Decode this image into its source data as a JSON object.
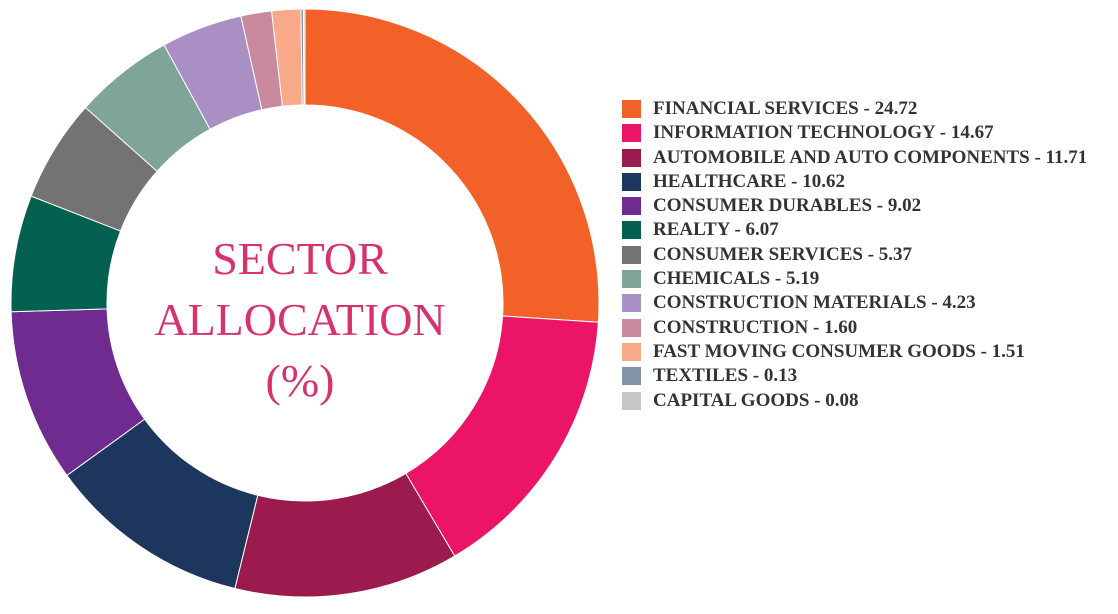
{
  "chart_data": {
    "type": "pie",
    "variant": "donut",
    "title_lines": [
      "SECTOR",
      "ALLOCATION",
      "(%)"
    ],
    "legend_position": "right",
    "slices": [
      {
        "label": "FINANCIAL SERVICES",
        "value": 24.72,
        "color": "#f26127",
        "legend_text": "FINANCIAL SERVICES - 24.72"
      },
      {
        "label": "INFORMATION TECHNOLOGY",
        "value": 14.67,
        "color": "#eb1466",
        "legend_text": "INFORMATION TECHNOLOGY - 14.67"
      },
      {
        "label": "AUTOMOBILE AND AUTO COMPONENTS",
        "value": 11.71,
        "color": "#9b1b4f",
        "legend_text": "AUTOMOBILE AND AUTO COMPONENTS - 11.71"
      },
      {
        "label": "HEALTHCARE",
        "value": 10.62,
        "color": "#1c365e",
        "legend_text": "HEALTHCARE - 10.62"
      },
      {
        "label": "CONSUMER DURABLES",
        "value": 9.02,
        "color": "#6f2b90",
        "legend_text": "CONSUMER DURABLES - 9.02"
      },
      {
        "label": "REALTY",
        "value": 6.07,
        "color": "#04604f",
        "legend_text": "REALTY - 6.07"
      },
      {
        "label": "CONSUMER SERVICES",
        "value": 5.37,
        "color": "#737373",
        "legend_text": "CONSUMER SERVICES - 5.37"
      },
      {
        "label": "CHEMICALS",
        "value": 5.19,
        "color": "#7fa59a",
        "legend_text": "CHEMICALS - 5.19"
      },
      {
        "label": "CONSTRUCTION MATERIALS",
        "value": 4.23,
        "color": "#a98fc4",
        "legend_text": "CONSTRUCTION MATERIALS - 4.23"
      },
      {
        "label": "CONSTRUCTION",
        "value": 1.6,
        "color": "#c98a9f",
        "legend_text": "CONSTRUCTION - 1.60"
      },
      {
        "label": "FAST MOVING CONSUMER GOODS",
        "value": 1.51,
        "color": "#f7a98a",
        "legend_text": "FAST MOVING CONSUMER GOODS - 1.51"
      },
      {
        "label": "TEXTILES",
        "value": 0.13,
        "color": "#8493a8",
        "legend_text": "TEXTILES - 0.13"
      },
      {
        "label": "CAPITAL GOODS",
        "value": 0.08,
        "color": "#c7c7c7",
        "legend_text": "CAPITAL GOODS - 0.08"
      }
    ]
  }
}
